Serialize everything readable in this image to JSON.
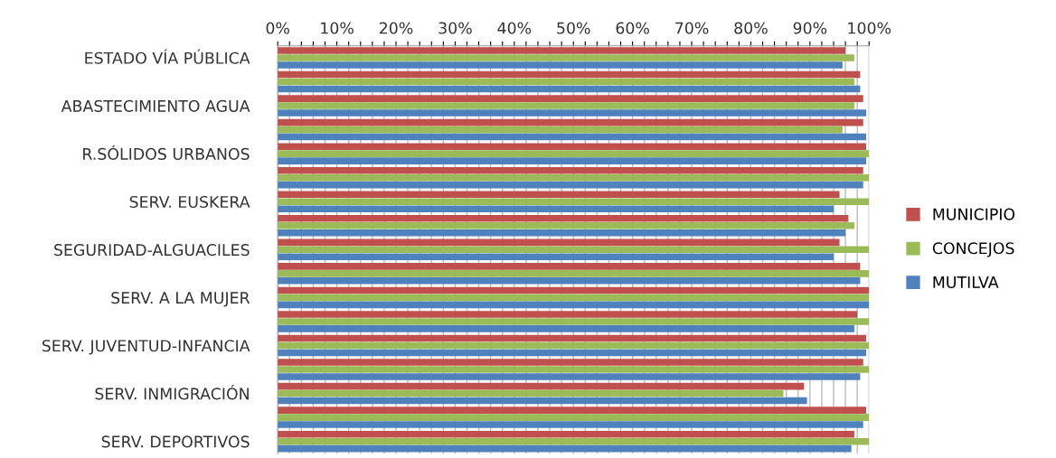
{
  "chart_data": {
    "type": "bar",
    "orientation": "horizontal",
    "categories": [
      "ESTADO VÍA PÚBLICA",
      null,
      "ABASTECIMIENTO AGUA",
      null,
      "R.SÓLIDOS URBANOS",
      null,
      "SERV. EUSKERA",
      null,
      "SEGURIDAD-ALGUACILES",
      null,
      "SERV. A LA MUJER",
      null,
      "SERV. JUVENTUD-INFANCIA",
      null,
      "SERV. INMIGRACIÓN",
      null,
      "SERV. DEPORTIVOS"
    ],
    "series": [
      {
        "name": "MUNICIPIO",
        "color": "#c0504d",
        "values": [
          96,
          98.5,
          99,
          99,
          99.5,
          99,
          95,
          96.5,
          95,
          98.5,
          100,
          98,
          99.5,
          99,
          89,
          99.5,
          97.5
        ]
      },
      {
        "name": "CONCEJOS",
        "color": "#9bbb59",
        "values": [
          97.5,
          97.5,
          97.5,
          95.5,
          100,
          100,
          100,
          97.5,
          100,
          100,
          100,
          100,
          100,
          100,
          85.5,
          100,
          100
        ]
      },
      {
        "name": "MUTILVA",
        "color": "#4f81bd",
        "values": [
          95.5,
          98.5,
          99.5,
          99.5,
          99.5,
          99,
          94,
          96,
          94,
          98.5,
          100,
          97.5,
          99.5,
          98.5,
          89.5,
          99,
          97
        ]
      }
    ],
    "xlim": [
      0,
      100
    ],
    "xticks": [
      {
        "value": 0,
        "label": "0%"
      },
      {
        "value": 2,
        "label": null
      },
      {
        "value": 4,
        "label": null
      },
      {
        "value": 6,
        "label": null
      },
      {
        "value": 8,
        "label": null
      },
      {
        "value": 10,
        "label": "10%"
      },
      {
        "value": 12,
        "label": null
      },
      {
        "value": 14,
        "label": null
      },
      {
        "value": 16,
        "label": null
      },
      {
        "value": 18,
        "label": null
      },
      {
        "value": 20,
        "label": "20%"
      },
      {
        "value": 22,
        "label": null
      },
      {
        "value": 24,
        "label": null
      },
      {
        "value": 26,
        "label": null
      },
      {
        "value": 28,
        "label": null
      },
      {
        "value": 30,
        "label": "30%"
      },
      {
        "value": 32,
        "label": null
      },
      {
        "value": 34,
        "label": null
      },
      {
        "value": 36,
        "label": null
      },
      {
        "value": 38,
        "label": null
      },
      {
        "value": 40,
        "label": "40%"
      },
      {
        "value": 42,
        "label": null
      },
      {
        "value": 44,
        "label": null
      },
      {
        "value": 46,
        "label": null
      },
      {
        "value": 48,
        "label": null
      },
      {
        "value": 50,
        "label": "50%"
      },
      {
        "value": 52,
        "label": null
      },
      {
        "value": 54,
        "label": null
      },
      {
        "value": 56,
        "label": null
      },
      {
        "value": 58,
        "label": null
      },
      {
        "value": 60,
        "label": "60%"
      },
      {
        "value": 62,
        "label": null
      },
      {
        "value": 64,
        "label": null
      },
      {
        "value": 66,
        "label": null
      },
      {
        "value": 68,
        "label": null
      },
      {
        "value": 70,
        "label": "70%"
      },
      {
        "value": 72,
        "label": null
      },
      {
        "value": 74,
        "label": null
      },
      {
        "value": 76,
        "label": null
      },
      {
        "value": 78,
        "label": null
      },
      {
        "value": 80,
        "label": "80%"
      },
      {
        "value": 82,
        "label": null
      },
      {
        "value": 84,
        "label": null
      },
      {
        "value": 86,
        "label": null
      },
      {
        "value": 88,
        "label": null
      },
      {
        "value": 90,
        "label": "90%"
      },
      {
        "value": 92,
        "label": null
      },
      {
        "value": 94,
        "label": null
      },
      {
        "value": 96,
        "label": null
      },
      {
        "value": 98,
        "label": null
      },
      {
        "value": 100,
        "label": "100%"
      }
    ],
    "grid": "x",
    "legend": "right"
  }
}
